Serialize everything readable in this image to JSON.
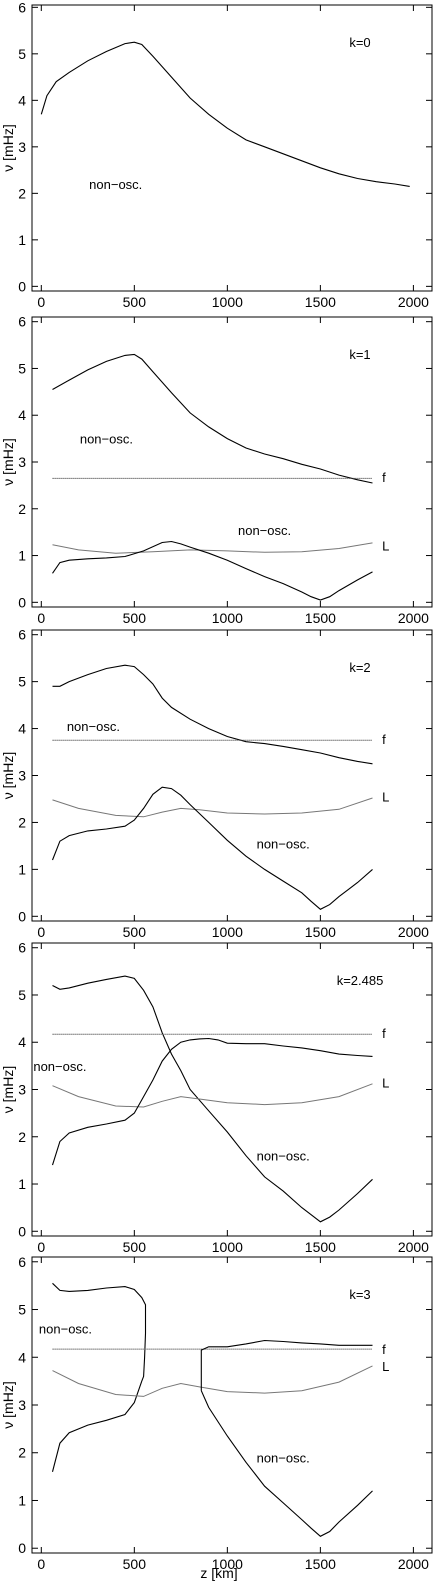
{
  "figure": {
    "xlabel": "z [km]",
    "ylabel": "ν [mHz]"
  },
  "chart_data": [
    {
      "type": "line",
      "title": "k=0",
      "xlim": [
        -50,
        2100
      ],
      "ylim": [
        -0.1,
        6.05
      ],
      "xticks": [
        0,
        500,
        1000,
        1500,
        2000
      ],
      "yticks": [
        0,
        1,
        2,
        3,
        4,
        5,
        6
      ],
      "annotations": [
        {
          "text": "non−osc.",
          "x": 400,
          "y": 2.2
        }
      ],
      "series": [
        {
          "style": "solid",
          "x": [
            0,
            30,
            80,
            150,
            250,
            350,
            450,
            500,
            540,
            600,
            700,
            800,
            900,
            1000,
            1100,
            1200,
            1300,
            1400,
            1500,
            1600,
            1700,
            1800,
            1900,
            1980
          ],
          "y": [
            3.7,
            4.1,
            4.4,
            4.6,
            4.85,
            5.05,
            5.22,
            5.25,
            5.2,
            4.95,
            4.5,
            4.05,
            3.7,
            3.4,
            3.15,
            3.0,
            2.85,
            2.7,
            2.55,
            2.42,
            2.32,
            2.25,
            2.2,
            2.15
          ]
        }
      ]
    },
    {
      "type": "line",
      "title": "k=1",
      "xlim": [
        -50,
        2100
      ],
      "ylim": [
        -0.1,
        6.1
      ],
      "xticks": [
        0,
        500,
        1000,
        1500,
        2000
      ],
      "yticks": [
        0,
        1,
        2,
        3,
        4,
        5,
        6
      ],
      "annotations": [
        {
          "text": "non−osc.",
          "x": 350,
          "y": 3.5
        },
        {
          "text": "non−osc.",
          "x": 1200,
          "y": 1.55
        },
        {
          "text": "f",
          "x": 1800,
          "y": 2.68
        },
        {
          "text": "L",
          "x": 1800,
          "y": 1.22
        }
      ],
      "series": [
        {
          "name": "upper",
          "style": "solid",
          "x": [
            60,
            150,
            250,
            350,
            450,
            500,
            540,
            600,
            700,
            800,
            900,
            1000,
            1100,
            1200,
            1300,
            1400,
            1500,
            1600,
            1700,
            1780
          ],
          "y": [
            4.55,
            4.75,
            4.97,
            5.15,
            5.28,
            5.3,
            5.2,
            4.93,
            4.48,
            4.05,
            3.75,
            3.5,
            3.3,
            3.17,
            3.07,
            2.95,
            2.85,
            2.72,
            2.62,
            2.55
          ]
        },
        {
          "name": "f",
          "style": "f",
          "x": [
            60,
            1780
          ],
          "y": [
            2.65,
            2.65
          ]
        },
        {
          "name": "L",
          "style": "L",
          "x": [
            60,
            200,
            400,
            600,
            800,
            1000,
            1200,
            1400,
            1600,
            1780
          ],
          "y": [
            1.23,
            1.12,
            1.05,
            1.08,
            1.12,
            1.1,
            1.07,
            1.08,
            1.15,
            1.27
          ]
        },
        {
          "name": "lower",
          "style": "solid",
          "x": [
            60,
            100,
            150,
            250,
            350,
            450,
            550,
            650,
            700,
            750,
            800,
            900,
            1000,
            1100,
            1200,
            1300,
            1400,
            1450,
            1500,
            1550,
            1600,
            1700,
            1780
          ],
          "y": [
            0.62,
            0.85,
            0.9,
            0.93,
            0.95,
            0.98,
            1.1,
            1.28,
            1.3,
            1.25,
            1.18,
            1.05,
            0.9,
            0.72,
            0.55,
            0.4,
            0.22,
            0.12,
            0.05,
            0.12,
            0.25,
            0.48,
            0.65
          ]
        }
      ]
    },
    {
      "type": "line",
      "title": "k=2",
      "xlim": [
        -50,
        2100
      ],
      "ylim": [
        -0.1,
        6.1
      ],
      "xticks": [
        0,
        500,
        1000,
        1500,
        2000
      ],
      "yticks": [
        0,
        1,
        2,
        3,
        4,
        5,
        6
      ],
      "annotations": [
        {
          "text": "non−osc.",
          "x": 280,
          "y": 4.05
        },
        {
          "text": "non−osc.",
          "x": 1300,
          "y": 1.55
        },
        {
          "text": "f",
          "x": 1800,
          "y": 3.78
        },
        {
          "text": "L",
          "x": 1800,
          "y": 2.55
        }
      ],
      "series": [
        {
          "name": "upper",
          "style": "solid",
          "x": [
            60,
            100,
            150,
            250,
            350,
            450,
            500,
            550,
            600,
            650,
            700,
            800,
            900,
            1000,
            1100,
            1200,
            1300,
            1400,
            1500,
            1600,
            1700,
            1780
          ],
          "y": [
            4.9,
            4.9,
            5.0,
            5.15,
            5.28,
            5.35,
            5.32,
            5.15,
            4.95,
            4.65,
            4.45,
            4.2,
            4.0,
            3.83,
            3.72,
            3.68,
            3.62,
            3.55,
            3.48,
            3.38,
            3.3,
            3.25
          ]
        },
        {
          "name": "f",
          "style": "f",
          "x": [
            60,
            1780
          ],
          "y": [
            3.75,
            3.75
          ]
        },
        {
          "name": "L",
          "style": "L",
          "x": [
            60,
            200,
            400,
            550,
            650,
            750,
            850,
            1000,
            1200,
            1400,
            1600,
            1780
          ],
          "y": [
            2.48,
            2.3,
            2.15,
            2.12,
            2.22,
            2.3,
            2.27,
            2.2,
            2.18,
            2.2,
            2.28,
            2.52
          ]
        },
        {
          "name": "lower",
          "style": "solid",
          "x": [
            60,
            100,
            150,
            250,
            350,
            450,
            500,
            550,
            600,
            650,
            700,
            750,
            800,
            900,
            1000,
            1100,
            1200,
            1300,
            1400,
            1450,
            1500,
            1550,
            1600,
            1700,
            1780
          ],
          "y": [
            1.2,
            1.6,
            1.72,
            1.82,
            1.86,
            1.92,
            2.05,
            2.3,
            2.6,
            2.75,
            2.72,
            2.58,
            2.38,
            2.0,
            1.62,
            1.28,
            1.0,
            0.75,
            0.5,
            0.32,
            0.15,
            0.25,
            0.42,
            0.72,
            1.0
          ]
        }
      ]
    },
    {
      "type": "line",
      "title": "k=2.485",
      "xlim": [
        -50,
        2100
      ],
      "ylim": [
        -0.1,
        6.1
      ],
      "xticks": [
        0,
        500,
        1000,
        1500,
        2000
      ],
      "yticks": [
        0,
        1,
        2,
        3,
        4,
        5,
        6
      ],
      "annotations": [
        {
          "text": "non−osc.",
          "x": 100,
          "y": 3.5
        },
        {
          "text": "non−osc.",
          "x": 1300,
          "y": 1.6
        },
        {
          "text": "f",
          "x": 1800,
          "y": 4.2
        },
        {
          "text": "L",
          "x": 1800,
          "y": 3.15
        }
      ],
      "series": [
        {
          "name": "upper-left",
          "style": "solid",
          "x": [
            60,
            100,
            150,
            250,
            350,
            450,
            500,
            550,
            600,
            650,
            700,
            750,
            800,
            900,
            1000,
            1100,
            1200,
            1300,
            1400,
            1450,
            1500,
            1550,
            1600,
            1700,
            1780
          ],
          "y": [
            5.2,
            5.12,
            5.15,
            5.25,
            5.33,
            5.4,
            5.35,
            5.1,
            4.75,
            4.2,
            3.75,
            3.4,
            3.0,
            2.55,
            2.1,
            1.6,
            1.15,
            0.85,
            0.5,
            0.35,
            0.2,
            0.3,
            0.45,
            0.8,
            1.1
          ]
        },
        {
          "name": "f",
          "style": "f",
          "x": [
            60,
            1780
          ],
          "y": [
            4.17,
            4.17
          ]
        },
        {
          "name": "L",
          "style": "L",
          "x": [
            60,
            200,
            400,
            550,
            650,
            750,
            850,
            1000,
            1200,
            1400,
            1600,
            1780
          ],
          "y": [
            3.08,
            2.85,
            2.65,
            2.63,
            2.75,
            2.85,
            2.8,
            2.72,
            2.68,
            2.72,
            2.85,
            3.12
          ]
        },
        {
          "name": "lower-left",
          "style": "solid",
          "x": [
            60,
            100,
            150,
            250,
            350,
            450,
            500,
            550,
            600,
            650,
            700,
            750,
            800,
            850,
            900,
            950,
            1000,
            1100,
            1200,
            1300,
            1400,
            1500,
            1600,
            1700,
            1780
          ],
          "y": [
            1.4,
            1.9,
            2.08,
            2.2,
            2.27,
            2.35,
            2.5,
            2.85,
            3.2,
            3.6,
            3.85,
            4.0,
            4.05,
            4.07,
            4.08,
            4.05,
            3.98,
            3.97,
            3.97,
            3.92,
            3.88,
            3.82,
            3.75,
            3.72,
            3.7
          ]
        }
      ]
    },
    {
      "type": "line",
      "title": "k=3",
      "xlim": [
        -50,
        2100
      ],
      "ylim": [
        -0.1,
        6.1
      ],
      "xticks": [
        0,
        500,
        1000,
        1500,
        2000
      ],
      "yticks": [
        0,
        1,
        2,
        3,
        4,
        5,
        6
      ],
      "annotations": [
        {
          "text": "non−osc.",
          "x": 130,
          "y": 4.6
        },
        {
          "text": "non−osc.",
          "x": 1300,
          "y": 1.9
        },
        {
          "text": "f",
          "x": 1800,
          "y": 4.17
        },
        {
          "text": "L",
          "x": 1800,
          "y": 3.82
        }
      ],
      "series": [
        {
          "name": "upper-left",
          "style": "solid",
          "x": [
            60,
            100,
            150,
            250,
            350,
            450,
            500,
            540,
            560,
            560,
            555,
            550,
            540
          ],
          "y": [
            5.55,
            5.4,
            5.38,
            5.4,
            5.45,
            5.48,
            5.42,
            5.25,
            5.1,
            4.5,
            4.0,
            3.6,
            3.5
          ]
        },
        {
          "name": "lower-left",
          "style": "solid",
          "x": [
            60,
            100,
            150,
            250,
            350,
            450,
            500,
            540
          ],
          "y": [
            1.6,
            2.2,
            2.42,
            2.58,
            2.68,
            2.8,
            3.05,
            3.5
          ]
        },
        {
          "name": "f",
          "style": "f",
          "x": [
            60,
            1780
          ],
          "y": [
            4.17,
            4.17
          ]
        },
        {
          "name": "L",
          "style": "L",
          "x": [
            60,
            200,
            400,
            550,
            650,
            750,
            850,
            1000,
            1200,
            1400,
            1600,
            1780
          ],
          "y": [
            3.72,
            3.45,
            3.22,
            3.18,
            3.35,
            3.45,
            3.38,
            3.28,
            3.25,
            3.3,
            3.48,
            3.82
          ]
        },
        {
          "name": "upper-right",
          "style": "solid",
          "x": [
            860,
            860,
            900,
            1000,
            1100,
            1200,
            1300,
            1400,
            1500,
            1600,
            1700,
            1780
          ],
          "y": [
            3.3,
            4.15,
            4.22,
            4.22,
            4.28,
            4.35,
            4.33,
            4.3,
            4.28,
            4.25,
            4.25,
            4.25
          ]
        },
        {
          "name": "lower-right",
          "style": "solid",
          "x": [
            860,
            900,
            1000,
            1100,
            1200,
            1300,
            1400,
            1450,
            1500,
            1550,
            1600,
            1700,
            1780
          ],
          "y": [
            3.3,
            2.95,
            2.35,
            1.8,
            1.3,
            0.95,
            0.6,
            0.42,
            0.25,
            0.35,
            0.55,
            0.9,
            1.2
          ]
        }
      ]
    }
  ]
}
